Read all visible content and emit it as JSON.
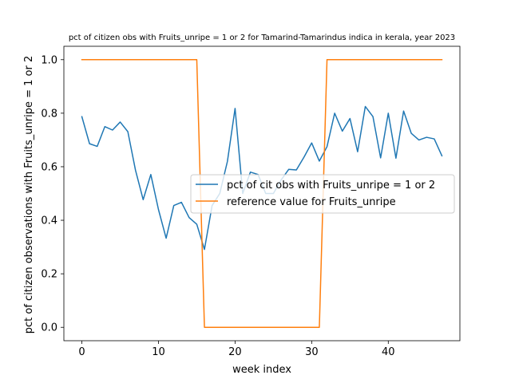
{
  "chart_data": {
    "type": "line",
    "title": "pct of citizen obs with Fruits_unripe = 1 or 2 for Tamarind-Tamarindus indica in kerala, year 2023",
    "xlabel": "week index",
    "ylabel": "pct of citizen observations with Fruits_unripe = 1 or 2",
    "xlim": [
      -2.35,
      49.35
    ],
    "ylim": [
      -0.05,
      1.05
    ],
    "xticks": [
      0,
      10,
      20,
      30,
      40
    ],
    "yticks": [
      0.0,
      0.2,
      0.4,
      0.6,
      0.8,
      1.0
    ],
    "ytick_labels": [
      "0.0",
      "0.2",
      "0.4",
      "0.6",
      "0.8",
      "1.0"
    ],
    "grid": false,
    "legend_position": "center-right",
    "series": [
      {
        "name": "pct of cit obs with Fruits_unripe = 1 or 2",
        "color": "#1f77b4",
        "x": [
          0,
          1,
          2,
          3,
          4,
          5,
          6,
          7,
          8,
          9,
          10,
          11,
          12,
          13,
          14,
          15,
          16,
          17,
          18,
          19,
          20,
          21,
          22,
          23,
          24,
          25,
          26,
          27,
          28,
          29,
          30,
          31,
          32,
          33,
          34,
          35,
          36,
          37,
          38,
          39,
          40,
          41,
          42,
          43,
          44,
          45,
          46,
          47
        ],
        "y": [
          0.787,
          0.686,
          0.676,
          0.75,
          0.737,
          0.767,
          0.731,
          0.587,
          0.477,
          0.571,
          0.44,
          0.333,
          0.455,
          0.467,
          0.41,
          0.385,
          0.291,
          0.455,
          0.5,
          0.62,
          0.818,
          0.5,
          0.58,
          0.571,
          0.5,
          0.5,
          0.55,
          0.59,
          0.588,
          0.636,
          0.689,
          0.621,
          0.675,
          0.8,
          0.733,
          0.78,
          0.656,
          0.825,
          0.787,
          0.633,
          0.8,
          0.632,
          0.808,
          0.725,
          0.7,
          0.71,
          0.704,
          0.641
        ]
      },
      {
        "name": "reference value for Fruits_unripe",
        "color": "#ff7f0e",
        "x": [
          0,
          1,
          2,
          3,
          4,
          5,
          6,
          7,
          8,
          9,
          10,
          11,
          12,
          13,
          14,
          15,
          16,
          17,
          18,
          19,
          20,
          21,
          22,
          23,
          24,
          25,
          26,
          27,
          28,
          29,
          30,
          31,
          32,
          33,
          34,
          35,
          36,
          37,
          38,
          39,
          40,
          41,
          42,
          43,
          44,
          45,
          46,
          47
        ],
        "y": [
          1,
          1,
          1,
          1,
          1,
          1,
          1,
          1,
          1,
          1,
          1,
          1,
          1,
          1,
          1,
          1,
          0,
          0,
          0,
          0,
          0,
          0,
          0,
          0,
          0,
          0,
          0,
          0,
          0,
          0,
          0,
          0,
          1,
          1,
          1,
          1,
          1,
          1,
          1,
          1,
          1,
          1,
          1,
          1,
          1,
          1,
          1,
          1
        ]
      }
    ]
  }
}
